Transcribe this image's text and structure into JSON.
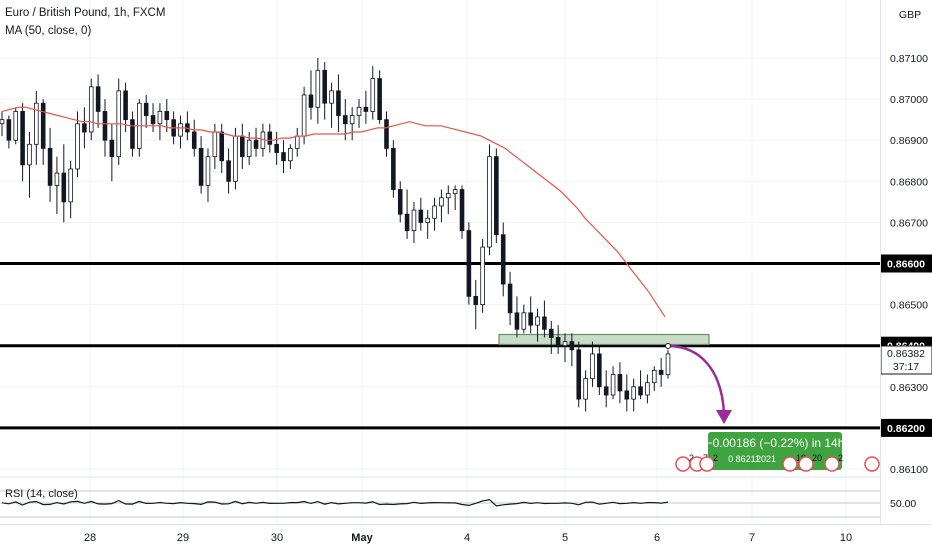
{
  "chart_data": {
    "type": "candlestick",
    "title": "Euro / British Pound, 1h, FXCM",
    "indicator": "MA (50, close, 0)",
    "currency": "GBP",
    "y_ticks": [
      "0.87100",
      "0.87000",
      "0.86900",
      "0.86800",
      "0.86700",
      "0.86500",
      "0.86300",
      "0.86100"
    ],
    "x_ticks": [
      "28",
      "29",
      "30",
      "May",
      "4",
      "5",
      "6",
      "7",
      "10"
    ],
    "ylim": [
      0.8609,
      0.8721
    ],
    "horizontal_levels": [
      {
        "value": 0.866,
        "label": "0.86600"
      },
      {
        "value": 0.864,
        "label": "0.86400"
      },
      {
        "value": 0.862,
        "label": "0.86200"
      }
    ],
    "current_price": {
      "value": 0.86382,
      "label": "0.86382",
      "countdown": "37:17"
    },
    "zone": {
      "from": 0.864,
      "to": 0.8642,
      "x_from": "May 4 late",
      "x_to": "May 6 night"
    },
    "projection": {
      "text": "−0.00186 (−0.22%) in 14h",
      "sub": "0.86211",
      "sub2": "2021"
    },
    "event_badges": [
      "2",
      "7",
      "2",
      "10",
      "20",
      "2"
    ],
    "candles": [
      [
        0.8694,
        0.8697,
        0.8691,
        0.8695
      ],
      [
        0.8695,
        0.8696,
        0.8688,
        0.869
      ],
      [
        0.869,
        0.8698,
        0.8689,
        0.8697
      ],
      [
        0.8697,
        0.8699,
        0.868,
        0.8684
      ],
      [
        0.8684,
        0.8692,
        0.8676,
        0.8689
      ],
      [
        0.8689,
        0.8702,
        0.8684,
        0.8699
      ],
      [
        0.8699,
        0.87,
        0.8684,
        0.8688
      ],
      [
        0.8688,
        0.8693,
        0.8675,
        0.8679
      ],
      [
        0.8679,
        0.8686,
        0.8672,
        0.8682
      ],
      [
        0.8682,
        0.8689,
        0.867,
        0.8675
      ],
      [
        0.8675,
        0.8685,
        0.8671,
        0.8683
      ],
      [
        0.8683,
        0.8697,
        0.8681,
        0.8694
      ],
      [
        0.8694,
        0.8698,
        0.8688,
        0.8692
      ],
      [
        0.8692,
        0.8705,
        0.869,
        0.8703
      ],
      [
        0.8703,
        0.8706,
        0.8693,
        0.8697
      ],
      [
        0.8697,
        0.87,
        0.8686,
        0.869
      ],
      [
        0.869,
        0.8694,
        0.868,
        0.8686
      ],
      [
        0.8686,
        0.8705,
        0.8684,
        0.8702
      ],
      [
        0.8702,
        0.8704,
        0.8692,
        0.8695
      ],
      [
        0.8695,
        0.8697,
        0.8686,
        0.8688
      ],
      [
        0.8688,
        0.87,
        0.8686,
        0.8699
      ],
      [
        0.8699,
        0.8701,
        0.8693,
        0.8696
      ],
      [
        0.8696,
        0.8699,
        0.8692,
        0.8694
      ],
      [
        0.8694,
        0.8699,
        0.869,
        0.8697
      ],
      [
        0.8697,
        0.87,
        0.8692,
        0.8695
      ],
      [
        0.8695,
        0.8697,
        0.8689,
        0.8691
      ],
      [
        0.8691,
        0.8696,
        0.8688,
        0.8694
      ],
      [
        0.8694,
        0.8697,
        0.869,
        0.8692
      ],
      [
        0.8692,
        0.8695,
        0.8686,
        0.8688
      ],
      [
        0.8688,
        0.8691,
        0.8677,
        0.8679
      ],
      [
        0.8679,
        0.8688,
        0.8675,
        0.8686
      ],
      [
        0.8686,
        0.8694,
        0.8683,
        0.8692
      ],
      [
        0.8692,
        0.8694,
        0.8682,
        0.8685
      ],
      [
        0.8685,
        0.8688,
        0.8677,
        0.868
      ],
      [
        0.868,
        0.8693,
        0.8678,
        0.8691
      ],
      [
        0.8691,
        0.8694,
        0.8683,
        0.8686
      ],
      [
        0.8686,
        0.8692,
        0.8684,
        0.869
      ],
      [
        0.869,
        0.8693,
        0.8686,
        0.8688
      ],
      [
        0.8688,
        0.8694,
        0.8686,
        0.8692
      ],
      [
        0.8692,
        0.8694,
        0.8687,
        0.8689
      ],
      [
        0.8689,
        0.8692,
        0.8684,
        0.8687
      ],
      [
        0.8687,
        0.869,
        0.8682,
        0.8685
      ],
      [
        0.8685,
        0.8689,
        0.8683,
        0.8688
      ],
      [
        0.8688,
        0.8693,
        0.8686,
        0.8691
      ],
      [
        0.8691,
        0.8703,
        0.8689,
        0.8701
      ],
      [
        0.8701,
        0.8707,
        0.8695,
        0.8698
      ],
      [
        0.8698,
        0.871,
        0.8694,
        0.8707
      ],
      [
        0.8707,
        0.8709,
        0.8695,
        0.8699
      ],
      [
        0.8699,
        0.8704,
        0.8693,
        0.8702
      ],
      [
        0.8702,
        0.8706,
        0.8692,
        0.8696
      ],
      [
        0.8696,
        0.87,
        0.869,
        0.8694
      ],
      [
        0.8694,
        0.8698,
        0.869,
        0.8696
      ],
      [
        0.8696,
        0.87,
        0.8693,
        0.8698
      ],
      [
        0.8698,
        0.8702,
        0.8694,
        0.8697
      ],
      [
        0.8697,
        0.8708,
        0.8695,
        0.8705
      ],
      [
        0.8705,
        0.8707,
        0.8694,
        0.8695
      ],
      [
        0.8695,
        0.8697,
        0.8686,
        0.8688
      ],
      [
        0.8688,
        0.869,
        0.8676,
        0.8678
      ],
      [
        0.8678,
        0.868,
        0.867,
        0.8672
      ],
      [
        0.8672,
        0.8678,
        0.8666,
        0.8668
      ],
      [
        0.8668,
        0.8675,
        0.8665,
        0.8673
      ],
      [
        0.8673,
        0.8676,
        0.8668,
        0.867
      ],
      [
        0.867,
        0.8673,
        0.8666,
        0.8671
      ],
      [
        0.8671,
        0.8676,
        0.8668,
        0.8674
      ],
      [
        0.8674,
        0.8678,
        0.867,
        0.8676
      ],
      [
        0.8676,
        0.8679,
        0.8672,
        0.8677
      ],
      [
        0.8677,
        0.8679,
        0.8673,
        0.8678
      ],
      [
        0.8678,
        0.8679,
        0.8666,
        0.8668
      ],
      [
        0.8668,
        0.867,
        0.865,
        0.8652
      ],
      [
        0.8652,
        0.8656,
        0.8644,
        0.865
      ],
      [
        0.865,
        0.8666,
        0.8648,
        0.8664
      ],
      [
        0.8664,
        0.8689,
        0.8662,
        0.8686
      ],
      [
        0.8686,
        0.8688,
        0.8665,
        0.8667
      ],
      [
        0.8667,
        0.867,
        0.8652,
        0.8655
      ],
      [
        0.8655,
        0.8658,
        0.8645,
        0.8648
      ],
      [
        0.8648,
        0.8652,
        0.8642,
        0.8644
      ],
      [
        0.8644,
        0.865,
        0.8643,
        0.8648
      ],
      [
        0.8648,
        0.8652,
        0.8643,
        0.8645
      ],
      [
        0.8645,
        0.8649,
        0.8641,
        0.8647
      ],
      [
        0.8647,
        0.8651,
        0.8642,
        0.8644
      ],
      [
        0.8644,
        0.8646,
        0.8638,
        0.8642
      ],
      [
        0.8642,
        0.8645,
        0.8638,
        0.864
      ],
      [
        0.864,
        0.8643,
        0.8636,
        0.8641
      ],
      [
        0.8641,
        0.8643,
        0.8635,
        0.8639
      ],
      [
        0.8639,
        0.8641,
        0.8625,
        0.8627
      ],
      [
        0.8627,
        0.8634,
        0.8624,
        0.8632
      ],
      [
        0.8632,
        0.8641,
        0.863,
        0.8638
      ],
      [
        0.8638,
        0.864,
        0.8628,
        0.863
      ],
      [
        0.863,
        0.8634,
        0.8625,
        0.8628
      ],
      [
        0.8628,
        0.8635,
        0.8627,
        0.8633
      ],
      [
        0.8633,
        0.8636,
        0.8626,
        0.8629
      ],
      [
        0.8629,
        0.8633,
        0.8624,
        0.8627
      ],
      [
        0.8627,
        0.8632,
        0.8624,
        0.863
      ],
      [
        0.863,
        0.8634,
        0.8627,
        0.8628
      ],
      [
        0.8628,
        0.8633,
        0.8626,
        0.8631
      ],
      [
        0.8631,
        0.8635,
        0.8629,
        0.8634
      ],
      [
        0.8634,
        0.8637,
        0.863,
        0.8633
      ],
      [
        0.8633,
        0.8639,
        0.8632,
        0.8638
      ]
    ],
    "ma": [
      0.8697,
      0.86975,
      0.8698,
      0.8698,
      0.86975,
      0.8697,
      0.86965,
      0.8696,
      0.86955,
      0.8695,
      0.86945,
      0.86945,
      0.8694,
      0.8694,
      0.8694,
      0.8694,
      0.86935,
      0.86935,
      0.86935,
      0.86935,
      0.86935,
      0.8693,
      0.8693,
      0.8693,
      0.86925,
      0.86925,
      0.8692,
      0.8692,
      0.86915,
      0.8691,
      0.8691,
      0.86905,
      0.86905,
      0.869,
      0.869,
      0.86905,
      0.86905,
      0.8691,
      0.8691,
      0.86915,
      0.86915,
      0.86915,
      0.86915,
      0.86915,
      0.8692,
      0.8692,
      0.86925,
      0.8693,
      0.8693,
      0.86935,
      0.8694,
      0.86945,
      0.8694,
      0.86935,
      0.86935,
      0.86935,
      0.8693,
      0.86925,
      0.8692,
      0.86915,
      0.8691,
      0.869,
      0.8689,
      0.8688,
      0.86865,
      0.8685,
      0.86835,
      0.8682,
      0.86805,
      0.8679,
      0.86775,
      0.86755,
      0.86735,
      0.8671,
      0.8669,
      0.8667,
      0.8665,
      0.8663,
      0.86605,
      0.8658,
      0.86555,
      0.8653,
      0.865,
      0.8647
    ]
  }
}
